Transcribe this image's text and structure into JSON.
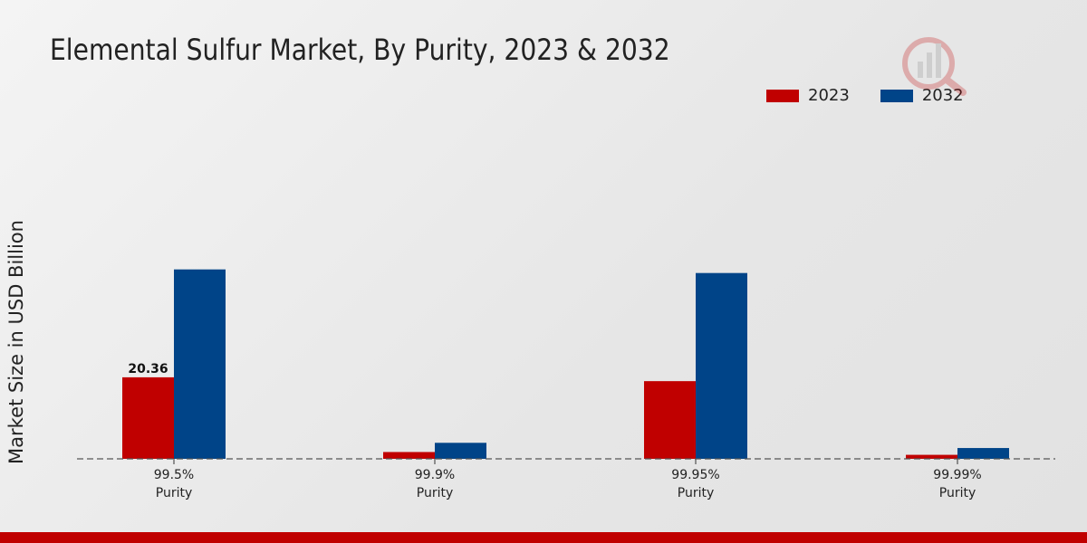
{
  "chart_data": {
    "type": "bar",
    "title": "Elemental Sulfur Market, By Purity, 2023 & 2032",
    "xlabel": "",
    "ylabel": "Market Size in USD Billion",
    "categories": [
      "99.5%\nPurity",
      "99.9%\nPurity",
      "99.95%\nPurity",
      "99.99%\nPurity"
    ],
    "series": [
      {
        "name": "2023",
        "color": "#c00000",
        "values": [
          20.36,
          1.7,
          19.4,
          1.0
        ]
      },
      {
        "name": "2032",
        "color": "#004488",
        "values": [
          47.3,
          4.0,
          46.4,
          2.7
        ]
      }
    ],
    "data_labels": [
      {
        "series": "2023",
        "category_index": 0,
        "text": "20.36"
      }
    ],
    "ylim": [
      0,
      80
    ],
    "grid": false,
    "legend_position": "top-right"
  }
}
